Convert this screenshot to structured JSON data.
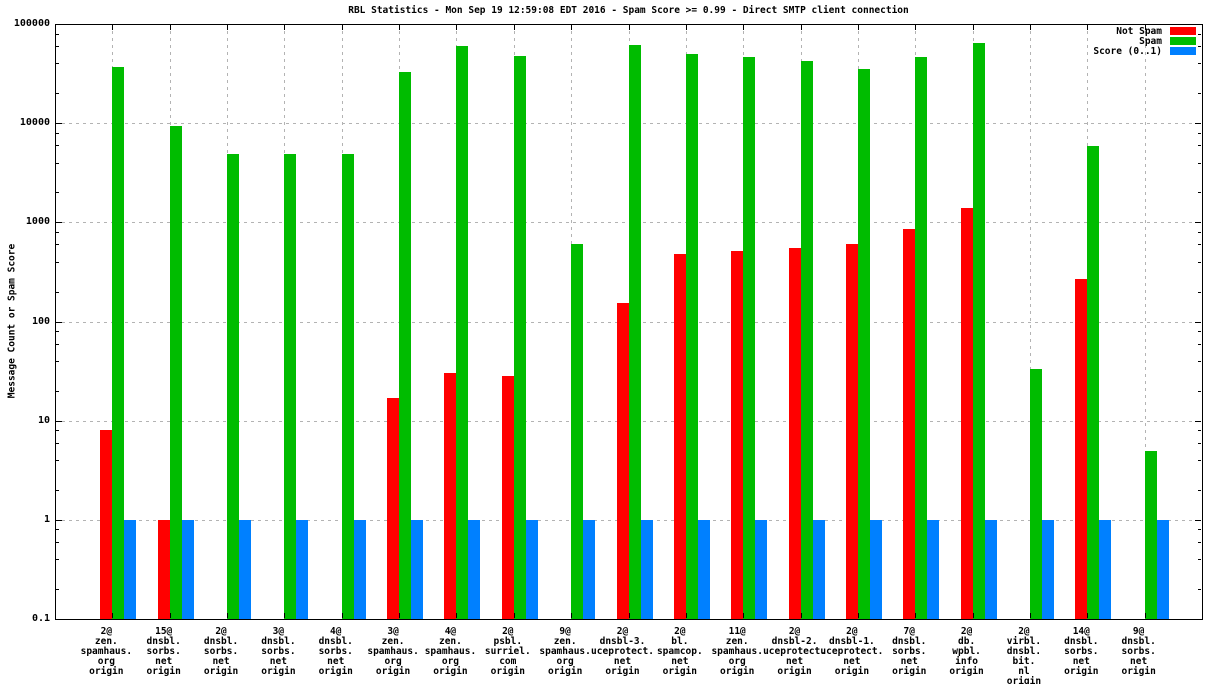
{
  "window": {
    "kind": "gnuplot-statistics-chart"
  },
  "chart_data": {
    "type": "bar",
    "title": "RBL Statistics - Mon Sep 19 12:59:08 EDT 2016 - Spam Score >= 0.99 - Direct SMTP client connection",
    "ylabel": "Message Count or Spam Score",
    "xlabel": "",
    "yscale": "log",
    "ylim": [
      0.1,
      100000
    ],
    "grid": true,
    "legend_position": "top-right-inside",
    "yticks": [
      100000,
      10000,
      1000,
      100,
      10,
      1,
      0.1
    ],
    "ytick_labels": [
      "100000",
      "10000",
      "1000",
      "100",
      "10",
      "1",
      "0.1"
    ],
    "categories": [
      [
        "2@",
        "zen.",
        "spamhaus.",
        "org",
        "origin"
      ],
      [
        "15@",
        "dnsbl.",
        "sorbs.",
        "net",
        "origin"
      ],
      [
        "2@",
        "dnsbl.",
        "sorbs.",
        "net",
        "origin"
      ],
      [
        "3@",
        "dnsbl.",
        "sorbs.",
        "net",
        "origin"
      ],
      [
        "4@",
        "dnsbl.",
        "sorbs.",
        "net",
        "origin"
      ],
      [
        "3@",
        "zen.",
        "spamhaus.",
        "org",
        "origin"
      ],
      [
        "4@",
        "zen.",
        "spamhaus.",
        "org",
        "origin"
      ],
      [
        "2@",
        "psbl.",
        "surriel.",
        "com",
        "origin"
      ],
      [
        "9@",
        "zen.",
        "spamhaus.",
        "org",
        "origin"
      ],
      [
        "2@",
        "dnsbl-3.",
        "uceprotect.",
        "net",
        "origin"
      ],
      [
        "2@",
        "bl.",
        "spamcop.",
        "net",
        "origin"
      ],
      [
        "11@",
        "zen.",
        "spamhaus.",
        "org",
        "origin"
      ],
      [
        "2@",
        "dnsbl-2.",
        "uceprotect.",
        "net",
        "origin"
      ],
      [
        "2@",
        "dnsbl-1.",
        "uceprotect.",
        "net",
        "origin"
      ],
      [
        "7@",
        "dnsbl.",
        "sorbs.",
        "net",
        "origin"
      ],
      [
        "2@",
        "db.",
        "wpbl.",
        "info",
        "origin"
      ],
      [
        "2@",
        "virbl.",
        "dnsbl.",
        "bit.",
        "nl",
        "origin"
      ],
      [
        "14@",
        "dnsbl.",
        "sorbs.",
        "net",
        "origin"
      ],
      [
        "9@",
        "dnsbl.",
        "sorbs.",
        "net",
        "origin"
      ]
    ],
    "series": [
      {
        "name": "Not Spam",
        "color": "#ff0000",
        "values": [
          8,
          1,
          null,
          null,
          null,
          17,
          30,
          28,
          null,
          155,
          480,
          520,
          550,
          610,
          860,
          1400,
          null,
          270,
          null
        ]
      },
      {
        "name": "Spam",
        "color": "#00bc00",
        "values": [
          36700,
          9300,
          4900,
          4900,
          4900,
          33000,
          60000,
          47500,
          610,
          61000,
          50000,
          46500,
          42000,
          35000,
          47000,
          64000,
          33,
          5900,
          5
        ]
      },
      {
        "name": "Score (0..1)",
        "color": "#0080ff",
        "values": [
          1,
          1,
          1,
          1,
          1,
          1,
          1,
          1,
          1,
          1,
          1,
          1,
          1,
          1,
          1,
          1,
          1,
          1,
          1
        ]
      }
    ]
  },
  "colors": {
    "background": "#ffffff",
    "border": "#000000",
    "grid": "#b3b3b3",
    "not_spam": "#ff0000",
    "spam": "#00bc00",
    "score": "#0080ff"
  }
}
